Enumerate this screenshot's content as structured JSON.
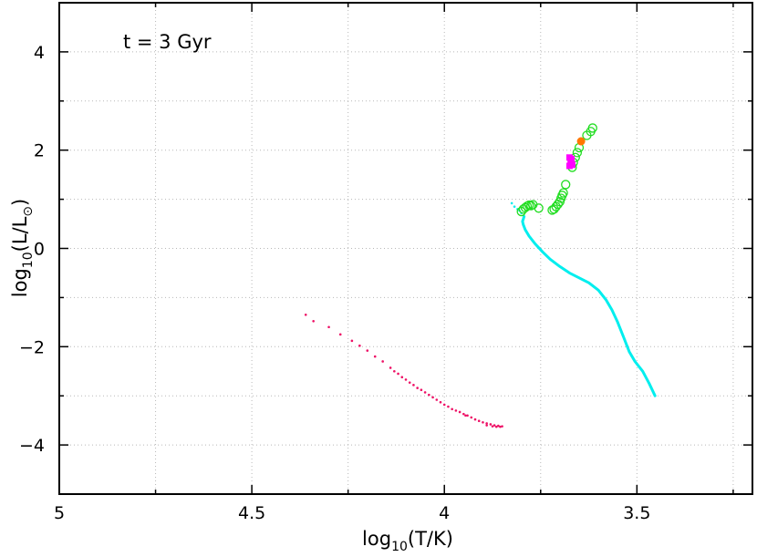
{
  "chart_data": {
    "type": "scatter",
    "annotation": "t = 3 Gyr",
    "xlabel": {
      "base": "log",
      "sub": "10",
      "rest": "(T/K)"
    },
    "ylabel": {
      "base": "log",
      "sub": "10",
      "open": "(L/L",
      "sun": "⊙",
      "close": ")"
    },
    "xlim": [
      5,
      3.2
    ],
    "ylim": [
      -5,
      5
    ],
    "x_reversed": true,
    "grid": true,
    "xticks": [
      {
        "value": 5,
        "label": "5"
      },
      {
        "value": 4.5,
        "label": "4.5"
      },
      {
        "value": 4,
        "label": "4"
      },
      {
        "value": 3.5,
        "label": "3.5"
      }
    ],
    "yticks": [
      {
        "value": 4,
        "label": "4"
      },
      {
        "value": 2,
        "label": "2"
      },
      {
        "value": 0,
        "label": "0"
      },
      {
        "value": -2,
        "label": "−2"
      },
      {
        "value": -4,
        "label": "−4"
      }
    ],
    "colors": {
      "main_sequence": "#00eeee",
      "white_dwarfs": "#ee1166",
      "giants": "#22dd22",
      "magenta": "#ff00ff",
      "orange": "#ff7700"
    },
    "series": [
      {
        "key": "main_sequence",
        "style": "line",
        "x": [
          3.453,
          3.468,
          3.485,
          3.505,
          3.52,
          3.535,
          3.55,
          3.565,
          3.58,
          3.6,
          3.625,
          3.65,
          3.675,
          3.7,
          3.725,
          3.745,
          3.765,
          3.78,
          3.79,
          3.795,
          3.797,
          3.795,
          3.793
        ],
        "y": [
          -3.0,
          -2.75,
          -2.5,
          -2.3,
          -2.1,
          -1.8,
          -1.5,
          -1.25,
          -1.05,
          -0.85,
          -0.7,
          -0.6,
          -0.5,
          -0.37,
          -0.22,
          -0.07,
          0.1,
          0.25,
          0.38,
          0.48,
          0.55,
          0.6,
          0.65
        ]
      },
      {
        "key": "main_sequence",
        "style": "dots",
        "x": [
          3.8,
          3.805,
          3.81,
          3.818,
          3.825
        ],
        "y": [
          0.72,
          0.77,
          0.8,
          0.85,
          0.92
        ]
      },
      {
        "key": "white_dwarfs",
        "style": "dots",
        "x": [
          4.36,
          4.34,
          4.3,
          4.27,
          4.24,
          4.22,
          4.2,
          4.18,
          4.16,
          4.14,
          4.13,
          4.12,
          4.11,
          4.1,
          4.09,
          4.08,
          4.07,
          4.06,
          4.05,
          4.04,
          4.03,
          4.02,
          4.01,
          4.0,
          3.99,
          3.98,
          3.97,
          3.96,
          3.95,
          3.94,
          3.93,
          3.92,
          3.91,
          3.9,
          3.89,
          3.88,
          3.87,
          3.86,
          3.85,
          3.855,
          3.865,
          3.875,
          3.89,
          3.945
        ],
        "y": [
          -1.35,
          -1.48,
          -1.6,
          -1.75,
          -1.88,
          -1.98,
          -2.08,
          -2.2,
          -2.3,
          -2.43,
          -2.5,
          -2.55,
          -2.62,
          -2.67,
          -2.73,
          -2.78,
          -2.84,
          -2.88,
          -2.93,
          -2.98,
          -3.03,
          -3.08,
          -3.13,
          -3.18,
          -3.22,
          -3.27,
          -3.3,
          -3.33,
          -3.37,
          -3.4,
          -3.44,
          -3.48,
          -3.51,
          -3.54,
          -3.56,
          -3.58,
          -3.6,
          -3.61,
          -3.62,
          -3.63,
          -3.63,
          -3.62,
          -3.6,
          -3.4
        ]
      },
      {
        "key": "giants",
        "style": "open-circles",
        "x": [
          3.8,
          3.795,
          3.79,
          3.785,
          3.78,
          3.775,
          3.77,
          3.755,
          3.72,
          3.715,
          3.71,
          3.705,
          3.7,
          3.697,
          3.694,
          3.691,
          3.685,
          3.668,
          3.665,
          3.66,
          3.655,
          3.65,
          3.63,
          3.62,
          3.615
        ],
        "y": [
          0.75,
          0.8,
          0.83,
          0.86,
          0.88,
          0.87,
          0.89,
          0.82,
          0.78,
          0.8,
          0.85,
          0.9,
          0.95,
          1.02,
          1.08,
          1.13,
          1.3,
          1.65,
          1.75,
          1.85,
          1.95,
          2.05,
          2.3,
          2.38,
          2.45
        ]
      },
      {
        "key": "magenta",
        "style": "squares",
        "x": [
          3.675,
          3.672,
          3.67,
          3.675,
          3.668
        ],
        "y": [
          1.68,
          1.75,
          1.82,
          1.85,
          1.7
        ]
      },
      {
        "key": "orange",
        "style": "filled-circles",
        "x": [
          3.645
        ],
        "y": [
          2.18
        ]
      }
    ]
  }
}
